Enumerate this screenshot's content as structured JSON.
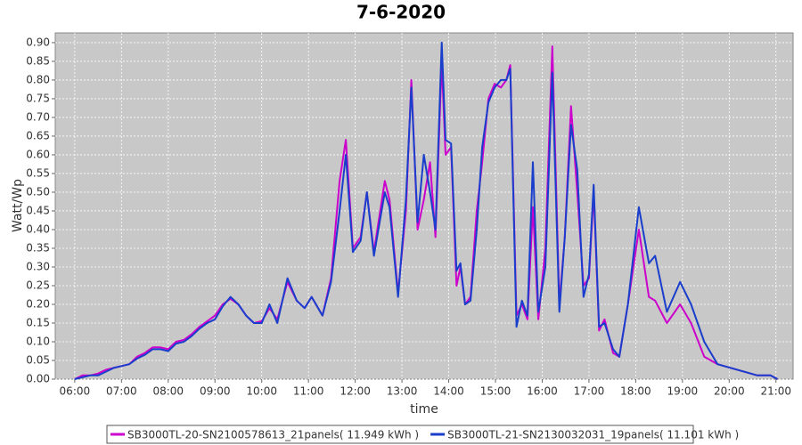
{
  "chart_data": {
    "type": "line",
    "title": "7-6-2020",
    "x_label": "time",
    "y_label": "Watt/Wp",
    "grid": true,
    "xlim": [
      335,
      1282
    ],
    "ylim": [
      0,
      0.926
    ],
    "xticks": [
      {
        "value": 360,
        "label": "06:00"
      },
      {
        "value": 420,
        "label": "07:00"
      },
      {
        "value": 480,
        "label": "08:00"
      },
      {
        "value": 540,
        "label": "09:00"
      },
      {
        "value": 600,
        "label": "10:00"
      },
      {
        "value": 660,
        "label": "11:00"
      },
      {
        "value": 720,
        "label": "12:00"
      },
      {
        "value": 780,
        "label": "13:00"
      },
      {
        "value": 840,
        "label": "14:00"
      },
      {
        "value": 900,
        "label": "15:00"
      },
      {
        "value": 960,
        "label": "16:00"
      },
      {
        "value": 1020,
        "label": "17:00"
      },
      {
        "value": 1080,
        "label": "18:00"
      },
      {
        "value": 1140,
        "label": "19:00"
      },
      {
        "value": 1200,
        "label": "20:00"
      },
      {
        "value": 1260,
        "label": "21:00"
      }
    ],
    "yticks": [
      {
        "value": 0,
        "label": "0.00"
      },
      {
        "value": 0.05,
        "label": "0.05"
      },
      {
        "value": 0.1,
        "label": "0.10"
      },
      {
        "value": 0.15,
        "label": "0.15"
      },
      {
        "value": 0.2,
        "label": "0.20"
      },
      {
        "value": 0.25,
        "label": "0.25"
      },
      {
        "value": 0.3,
        "label": "0.30"
      },
      {
        "value": 0.35,
        "label": "0.35"
      },
      {
        "value": 0.4,
        "label": "0.40"
      },
      {
        "value": 0.45,
        "label": "0.45"
      },
      {
        "value": 0.5,
        "label": "0.50"
      },
      {
        "value": 0.55,
        "label": "0.55"
      },
      {
        "value": 0.6,
        "label": "0.60"
      },
      {
        "value": 0.65,
        "label": "0.65"
      },
      {
        "value": 0.7,
        "label": "0.70"
      },
      {
        "value": 0.75,
        "label": "0.75"
      },
      {
        "value": 0.8,
        "label": "0.80"
      },
      {
        "value": 0.85,
        "label": "0.85"
      },
      {
        "value": 0.9,
        "label": "0.90"
      }
    ],
    "x": [
      360,
      370,
      380,
      390,
      400,
      410,
      420,
      430,
      440,
      450,
      460,
      470,
      480,
      490,
      500,
      510,
      520,
      530,
      540,
      550,
      560,
      570,
      580,
      590,
      600,
      610,
      620,
      633,
      645,
      655,
      664,
      678,
      689,
      700,
      708,
      717,
      727,
      735,
      744,
      758,
      764,
      775,
      785,
      792,
      800,
      808,
      816,
      823,
      831,
      836,
      843,
      850,
      855,
      861,
      868,
      876,
      883,
      891,
      899,
      907,
      914,
      919,
      927,
      934,
      941,
      948,
      955,
      964,
      973,
      982,
      989,
      997,
      1005,
      1013,
      1020,
      1026,
      1033,
      1040,
      1051,
      1059,
      1070,
      1084,
      1097,
      1105,
      1120,
      1137,
      1151,
      1168,
      1185,
      1202,
      1219,
      1236,
      1253,
      1262
    ],
    "series": [
      {
        "name": "SB3000TL-20-SN2100578613_21panels( 11.949 kWh )",
        "color": "#cc00cc",
        "values": [
          0,
          0.01,
          0.01,
          0.015,
          0.025,
          0.03,
          0.035,
          0.04,
          0.06,
          0.07,
          0.085,
          0.085,
          0.08,
          0.1,
          0.105,
          0.12,
          0.14,
          0.155,
          0.17,
          0.2,
          0.215,
          0.2,
          0.17,
          0.15,
          0.155,
          0.19,
          0.16,
          0.26,
          0.21,
          0.19,
          0.22,
          0.17,
          0.27,
          0.53,
          0.64,
          0.35,
          0.38,
          0.5,
          0.34,
          0.53,
          0.48,
          0.23,
          0.45,
          0.8,
          0.4,
          0.48,
          0.58,
          0.38,
          0.85,
          0.6,
          0.62,
          0.25,
          0.3,
          0.2,
          0.22,
          0.45,
          0.58,
          0.75,
          0.79,
          0.78,
          0.8,
          0.84,
          0.17,
          0.2,
          0.16,
          0.46,
          0.16,
          0.35,
          0.89,
          0.2,
          0.38,
          0.73,
          0.5,
          0.25,
          0.27,
          0.5,
          0.13,
          0.16,
          0.07,
          0.06,
          0.2,
          0.4,
          0.22,
          0.21,
          0.15,
          0.2,
          0.15,
          0.06,
          0.04,
          0.03,
          0.02,
          0.01,
          0.01,
          0
        ]
      },
      {
        "name": "SB3000TL-21-SN2130032031_19panels( 11.101 kWh )",
        "color": "#1a3ecc",
        "values": [
          0,
          0.005,
          0.01,
          0.01,
          0.02,
          0.03,
          0.035,
          0.04,
          0.055,
          0.065,
          0.08,
          0.08,
          0.075,
          0.095,
          0.1,
          0.115,
          0.135,
          0.15,
          0.16,
          0.195,
          0.22,
          0.2,
          0.17,
          0.15,
          0.15,
          0.2,
          0.15,
          0.27,
          0.21,
          0.19,
          0.22,
          0.17,
          0.26,
          0.45,
          0.6,
          0.34,
          0.37,
          0.5,
          0.33,
          0.5,
          0.46,
          0.22,
          0.48,
          0.78,
          0.42,
          0.6,
          0.5,
          0.4,
          0.9,
          0.64,
          0.63,
          0.29,
          0.31,
          0.2,
          0.21,
          0.4,
          0.62,
          0.74,
          0.78,
          0.8,
          0.8,
          0.83,
          0.14,
          0.21,
          0.17,
          0.58,
          0.18,
          0.3,
          0.82,
          0.18,
          0.38,
          0.68,
          0.56,
          0.22,
          0.28,
          0.52,
          0.14,
          0.15,
          0.08,
          0.06,
          0.2,
          0.46,
          0.31,
          0.33,
          0.18,
          0.26,
          0.2,
          0.1,
          0.04,
          0.03,
          0.02,
          0.01,
          0.01,
          0
        ]
      }
    ]
  }
}
